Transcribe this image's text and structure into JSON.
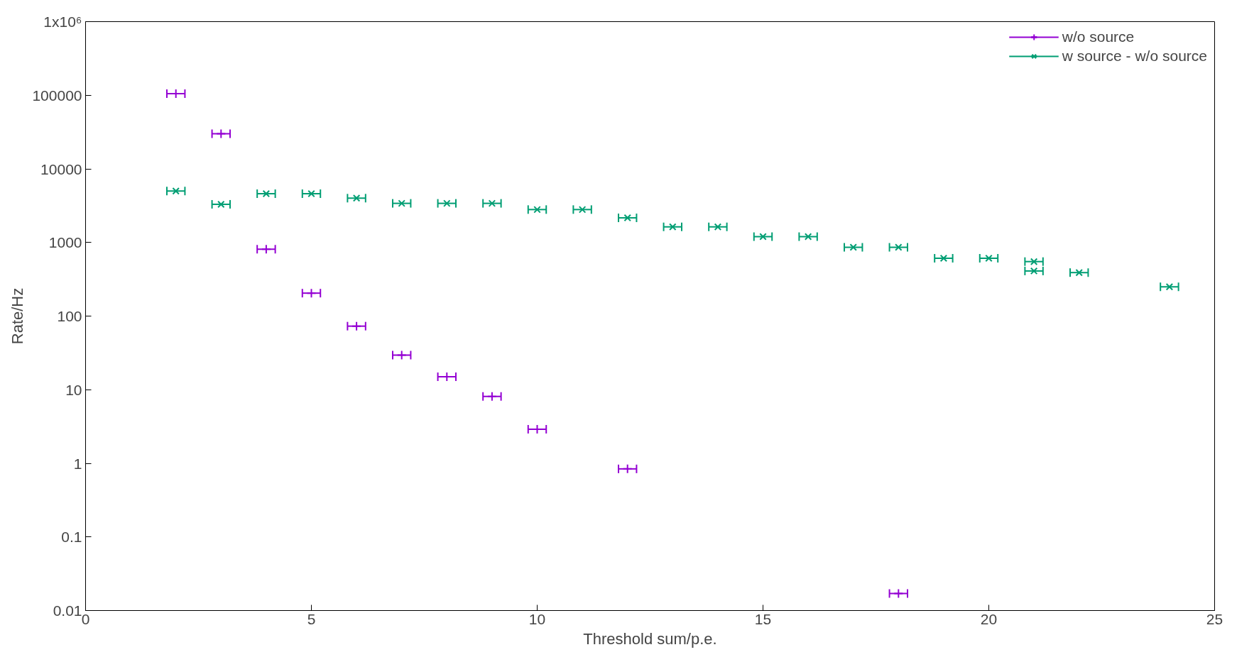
{
  "chart_data": {
    "type": "scatter",
    "xlabel": "Threshold sum/p.e.",
    "ylabel": "Rate/Hz",
    "log": "y",
    "grid": false,
    "legend": "top right",
    "xlim": [
      0,
      25
    ],
    "xticks": [
      0,
      5,
      10,
      15,
      20,
      25
    ],
    "ylim": [
      0.01,
      1000000
    ],
    "yticks": [
      0.01,
      0.1,
      1,
      10,
      100,
      1000,
      10000,
      100000,
      {
        "value": 1000000,
        "label": "1x10⁶"
      }
    ],
    "series": [
      {
        "name": "w/o source",
        "color": "#9400d3",
        "marker": "cross",
        "x": [
          2,
          3,
          4,
          5,
          6,
          7,
          8,
          9,
          10,
          12,
          18
        ],
        "values": [
          105000,
          30000,
          810,
          205,
          73,
          29.5,
          15,
          8.1,
          2.9,
          0.84,
          0.017
        ],
        "xerrors": [
          0.2,
          0.2,
          0.2,
          0.2,
          0.2,
          0.2,
          0.2,
          0.2,
          0.2,
          0.2,
          0.2
        ]
      },
      {
        "name": "w source - w/o source",
        "color": "#009e73",
        "marker": "x",
        "x": [
          2,
          3,
          4,
          5,
          6,
          7,
          8,
          9,
          10,
          11,
          12,
          13,
          14,
          15,
          16,
          17,
          18,
          19,
          20,
          21,
          21,
          22,
          24
        ],
        "values": [
          5000,
          3300,
          4600,
          4600,
          4000,
          3400,
          3400,
          3400,
          2800,
          2800,
          2160,
          1630,
          1630,
          1200,
          1200,
          860,
          860,
          610,
          610,
          550,
          410,
          390,
          250
        ],
        "xerrors": [
          0.2,
          0.2,
          0.2,
          0.2,
          0.2,
          0.2,
          0.2,
          0.2,
          0.2,
          0.2,
          0.2,
          0.2,
          0.2,
          0.2,
          0.2,
          0.2,
          0.2,
          0.2,
          0.2,
          0.2,
          0.2,
          0.2,
          0.2
        ]
      }
    ]
  }
}
